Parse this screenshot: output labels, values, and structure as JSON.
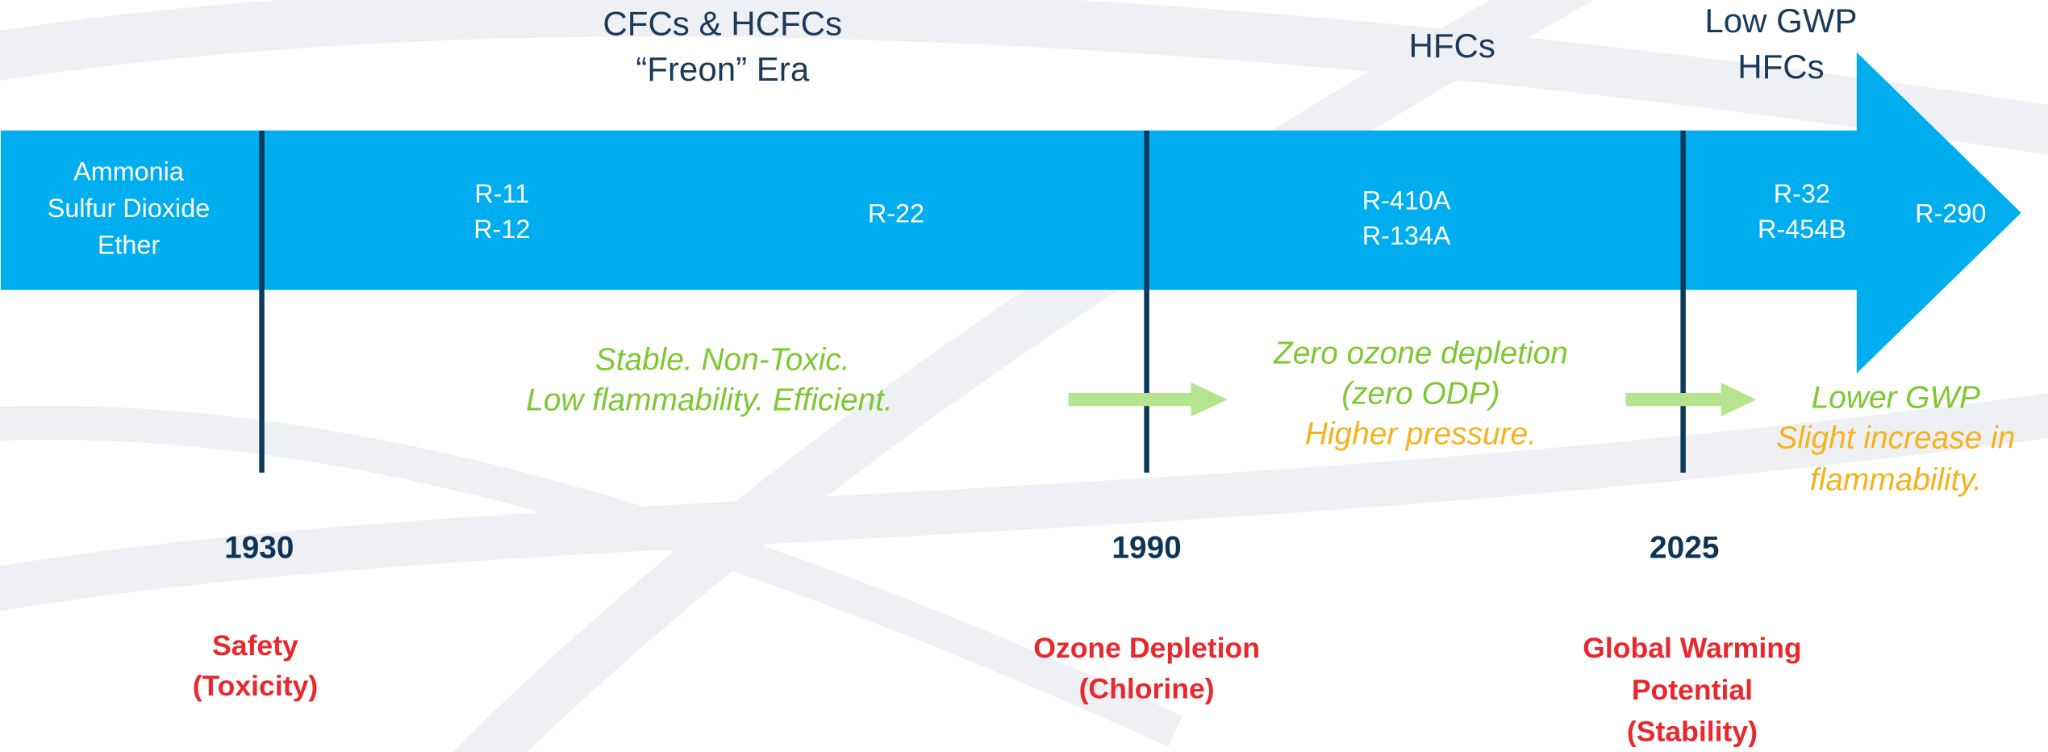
{
  "eras": [
    {
      "lines": [
        "CFCs & HCFCs",
        "“Freon” Era"
      ]
    },
    {
      "lines": [
        "HFCs"
      ]
    },
    {
      "lines": [
        "Low GWP",
        "HFCs"
      ]
    }
  ],
  "refrigerants": [
    {
      "lines": [
        "Ammonia",
        "Sulfur Dioxide",
        "Ether"
      ]
    },
    {
      "lines": [
        "R-11",
        "R-12"
      ]
    },
    {
      "lines": [
        "R-22"
      ]
    },
    {
      "lines": [
        "R-410A",
        "R-134A"
      ]
    },
    {
      "lines": [
        "R-32",
        "R-454B"
      ]
    },
    {
      "lines": [
        "R-290"
      ]
    }
  ],
  "notes": [
    {
      "lines": [
        "Stable. Non-Toxic.",
        "Low flammability. Efficient."
      ]
    },
    {
      "lines": [
        "Zero ozone depletion",
        "(zero ODP)",
        "Higher pressure."
      ]
    },
    {
      "lines": [
        "Lower GWP",
        "Slight increase in",
        "flammability."
      ]
    }
  ],
  "years": [
    "1930",
    "1990",
    "2025"
  ],
  "drivers": [
    {
      "lines": [
        "Safety",
        "(Toxicity)"
      ]
    },
    {
      "lines": [
        "Ozone Depletion",
        "(Chlorine)"
      ]
    },
    {
      "lines": [
        "Global Warming",
        "Potential",
        "(Stability)"
      ]
    }
  ]
}
